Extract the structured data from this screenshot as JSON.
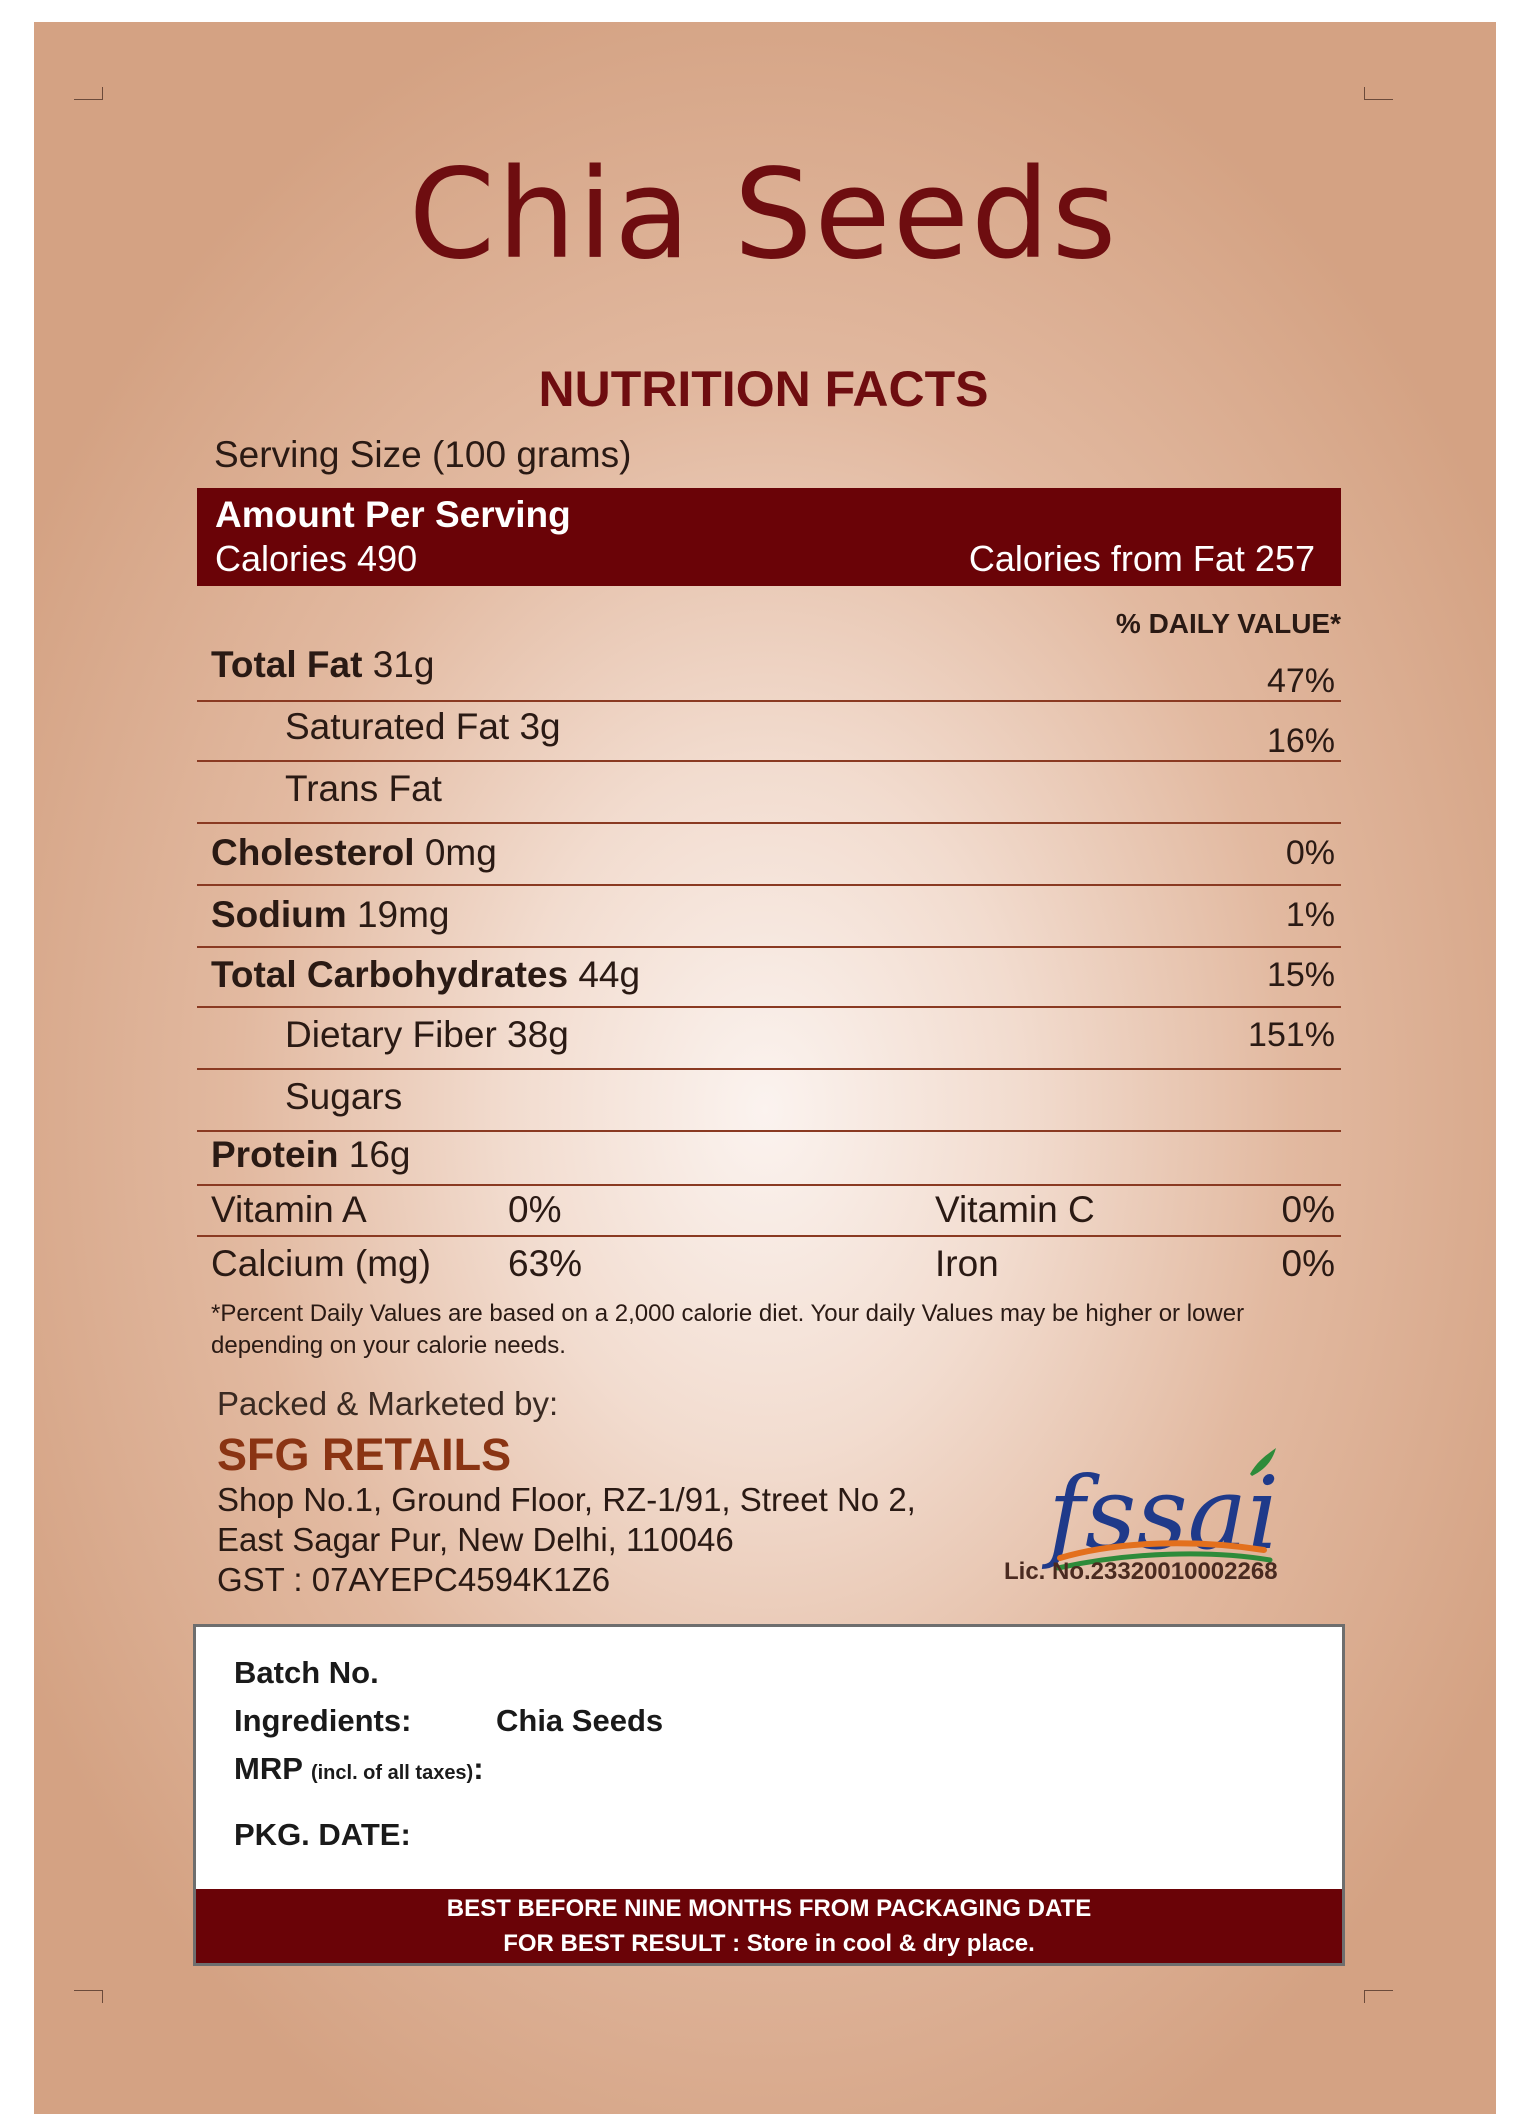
{
  "product_title": "Chia Seeds",
  "nutrition": {
    "heading": "NUTRITION FACTS",
    "serving_size": "Serving Size (100 grams)",
    "amount_per_serving": "Amount Per Serving",
    "calories": "Calories 490",
    "calories_from_fat": "Calories from Fat 257",
    "dv_header": "% DAILY VALUE*",
    "rows": [
      {
        "bold": "Total Fat",
        "amount": " 31g",
        "pct": "47%"
      },
      {
        "bold": "",
        "amount": "Saturated Fat 3g",
        "pct": "16%"
      },
      {
        "bold": "",
        "amount": "Trans Fat",
        "pct": ""
      },
      {
        "bold": "Cholesterol",
        "amount": " 0mg",
        "pct": "0%"
      },
      {
        "bold": "Sodium",
        "amount": " 19mg",
        "pct": "1%"
      },
      {
        "bold": "Total Carbohydrates",
        "amount": " 44g",
        "pct": "15%"
      },
      {
        "bold": "",
        "amount": "Dietary Fiber 38g",
        "pct": "151%"
      },
      {
        "bold": "",
        "amount": "Sugars",
        "pct": ""
      },
      {
        "bold": "Protein",
        "amount": " 16g",
        "pct": ""
      }
    ],
    "vitamins": [
      {
        "name": "Vitamin A",
        "value": "0%",
        "name2": "Vitamin C",
        "value2": "0%"
      },
      {
        "name": "Calcium (mg)",
        "value": "63%",
        "name2": "Iron",
        "value2": "0%"
      }
    ],
    "footnote": "*Percent Daily Values are based on a 2,000 calorie diet. Your daily Values may be higher or lower depending on your calorie needs."
  },
  "marketer": {
    "packed_by": "Packed & Marketed by:",
    "company": "SFG RETAILS",
    "address_line1": "Shop No.1, Ground Floor, RZ-1/91, Street No 2,",
    "address_line2": "East Sagar Pur, New Delhi, 110046",
    "gst": "GST : 07AYEPC4594K1Z6"
  },
  "fssai": {
    "logo_text": "fssai",
    "license": "Lic. No.23320010002268"
  },
  "info_box": {
    "batch_label": "Batch No.",
    "ingredients_label": "Ingredients:",
    "ingredients_value": "Chia Seeds",
    "mrp_label": "MRP",
    "mrp_note": "(incl. of all taxes)",
    "mrp_colon": ":",
    "pkg_date_label": "PKG. DATE:",
    "best_before": "BEST BEFORE NINE MONTHS FROM PACKAGING DATE",
    "storage": "FOR BEST RESULT : Store in cool & dry place."
  },
  "colors": {
    "maroon": "#6a0307",
    "title": "#6e0d10",
    "company": "#8a3413",
    "fssai_orange": "#e3701d",
    "fssai_blue": "#1f3a8a",
    "fssai_green": "#2e8b3a"
  }
}
